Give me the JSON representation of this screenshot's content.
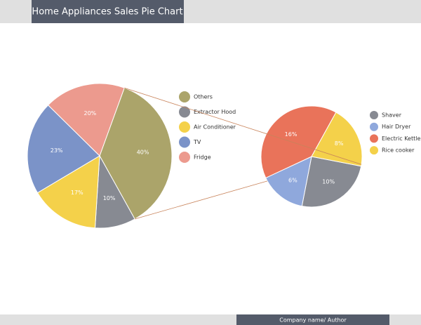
{
  "header": {
    "title": "Home Appliances Sales Pie Chart"
  },
  "footer": {
    "author": "Company name/ Author"
  },
  "chart_data": [
    {
      "type": "pie",
      "categories": [
        "Others",
        "Extractor Hood",
        "Air Conditioner",
        "TV",
        "Fridge"
      ],
      "values": [
        40,
        10,
        17,
        23,
        20
      ],
      "value_labels": [
        "40%",
        "10%",
        "17%",
        "23%",
        "20%"
      ],
      "colors": [
        "#aba46a",
        "#878a92",
        "#f4d14a",
        "#7b93c8",
        "#ec9a8e"
      ]
    },
    {
      "type": "pie",
      "categories": [
        "Shaver",
        "Hair Dryer",
        "Electric Kettle",
        "Rice cooker"
      ],
      "values": [
        10,
        6,
        16,
        8
      ],
      "value_labels": [
        "10%",
        "6%",
        "16%",
        "8%"
      ],
      "colors": [
        "#878a92",
        "#8fa8dc",
        "#e9735a",
        "#f4d14a"
      ]
    }
  ]
}
